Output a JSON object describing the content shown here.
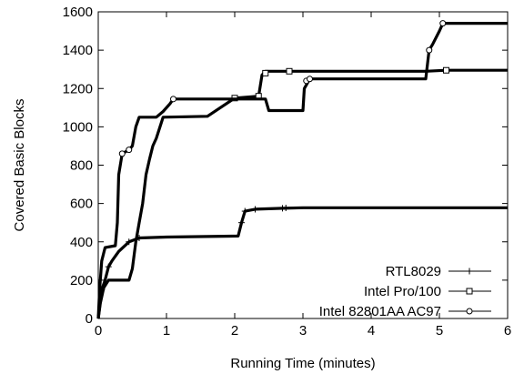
{
  "chart_data": {
    "type": "line",
    "xlabel": "Running Time (minutes)",
    "ylabel": "Covered Basic Blocks",
    "xlim": [
      0,
      6
    ],
    "ylim": [
      0,
      1600
    ],
    "xticks": [
      "0",
      "1",
      "2",
      "3",
      "4",
      "5",
      "6"
    ],
    "yticks": [
      "0",
      "200",
      "400",
      "600",
      "800",
      "1000",
      "1200",
      "1400",
      "1600"
    ],
    "grid": false,
    "legend_position": "bottom-right",
    "series": [
      {
        "name": "RTL8029",
        "marker": "plus",
        "points": [
          [
            0,
            0
          ],
          [
            0.02,
            60
          ],
          [
            0.05,
            150
          ],
          [
            0.1,
            200
          ],
          [
            0.15,
            270
          ],
          [
            0.2,
            300
          ],
          [
            0.3,
            350
          ],
          [
            0.45,
            400
          ],
          [
            0.6,
            420
          ],
          [
            1.0,
            425
          ],
          [
            2.05,
            430
          ],
          [
            2.1,
            500
          ],
          [
            2.15,
            560
          ],
          [
            2.3,
            570
          ],
          [
            2.7,
            575
          ],
          [
            3.0,
            578
          ],
          [
            6.0,
            578
          ]
        ],
        "markers": [
          [
            0.05,
            150
          ],
          [
            0.15,
            270
          ],
          [
            0.45,
            400
          ],
          [
            0.6,
            420
          ],
          [
            2.1,
            500
          ],
          [
            2.15,
            560
          ],
          [
            2.3,
            570
          ],
          [
            2.7,
            575
          ],
          [
            2.75,
            577
          ]
        ]
      },
      {
        "name": "Intel Pro/100",
        "marker": "square",
        "points": [
          [
            0,
            0
          ],
          [
            0.03,
            80
          ],
          [
            0.08,
            160
          ],
          [
            0.15,
            200
          ],
          [
            0.35,
            200
          ],
          [
            0.45,
            200
          ],
          [
            0.5,
            260
          ],
          [
            0.55,
            400
          ],
          [
            0.6,
            500
          ],
          [
            0.65,
            600
          ],
          [
            0.7,
            750
          ],
          [
            0.75,
            830
          ],
          [
            0.8,
            900
          ],
          [
            0.85,
            940
          ],
          [
            0.95,
            1050
          ],
          [
            1.6,
            1055
          ],
          [
            2.0,
            1150
          ],
          [
            2.35,
            1160
          ],
          [
            2.4,
            1270
          ],
          [
            2.45,
            1290
          ],
          [
            4.8,
            1290
          ],
          [
            5.1,
            1295
          ],
          [
            6.0,
            1295
          ]
        ],
        "markers": [
          [
            2.0,
            1150
          ],
          [
            2.35,
            1160
          ],
          [
            2.45,
            1280
          ],
          [
            2.8,
            1290
          ],
          [
            5.1,
            1295
          ]
        ]
      },
      {
        "name": "Intel 82801AA AC97",
        "marker": "circle",
        "points": [
          [
            0,
            0
          ],
          [
            0.02,
            150
          ],
          [
            0.05,
            300
          ],
          [
            0.1,
            370
          ],
          [
            0.25,
            380
          ],
          [
            0.28,
            500
          ],
          [
            0.3,
            750
          ],
          [
            0.35,
            860
          ],
          [
            0.45,
            880
          ],
          [
            0.5,
            900
          ],
          [
            0.55,
            1000
          ],
          [
            0.6,
            1050
          ],
          [
            0.85,
            1050
          ],
          [
            0.95,
            1080
          ],
          [
            1.05,
            1120
          ],
          [
            1.1,
            1145
          ],
          [
            2.45,
            1145
          ],
          [
            2.5,
            1085
          ],
          [
            3.0,
            1085
          ],
          [
            3.02,
            1200
          ],
          [
            3.1,
            1250
          ],
          [
            4.8,
            1250
          ],
          [
            4.85,
            1400
          ],
          [
            4.9,
            1430
          ],
          [
            5.0,
            1500
          ],
          [
            5.05,
            1540
          ],
          [
            6.0,
            1540
          ]
        ],
        "markers": [
          [
            0.35,
            860
          ],
          [
            0.45,
            880
          ],
          [
            1.1,
            1145
          ],
          [
            3.05,
            1240
          ],
          [
            3.1,
            1250
          ],
          [
            4.85,
            1400
          ],
          [
            5.05,
            1540
          ]
        ]
      }
    ]
  }
}
